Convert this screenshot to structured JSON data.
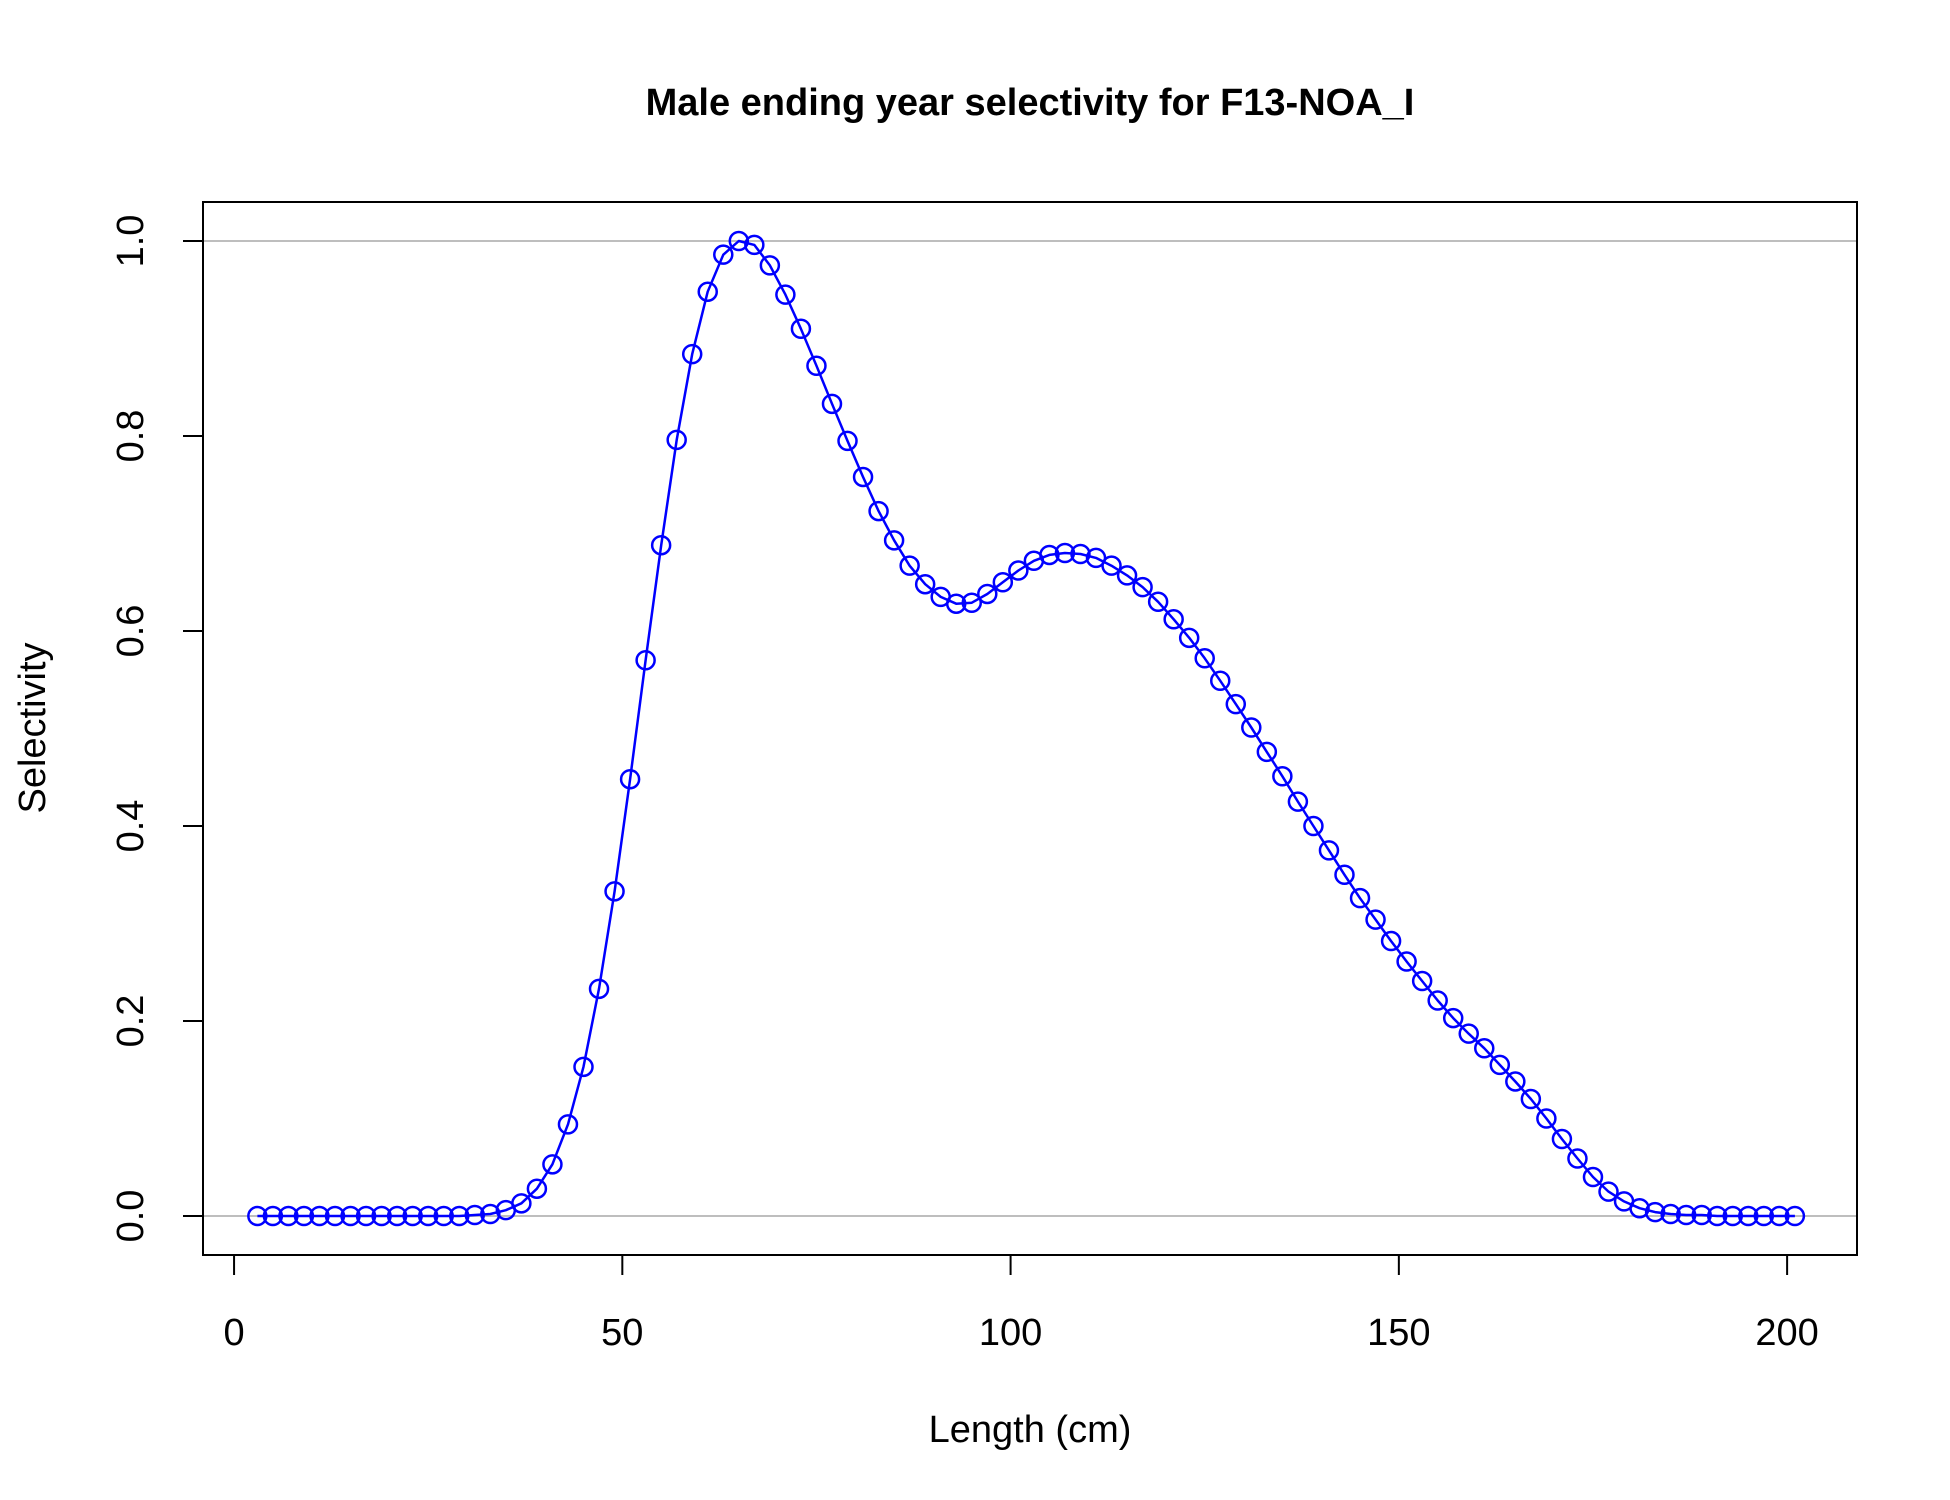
{
  "chart_data": {
    "type": "line",
    "title": "Male ending year selectivity for F13-NOA_I",
    "xlabel": "Length (cm)",
    "ylabel": "Selectivity",
    "xlim": [
      -4,
      209
    ],
    "ylim": [
      -0.04,
      1.04
    ],
    "x_ticks": [
      0,
      50,
      100,
      150,
      200
    ],
    "x_tick_labels": [
      "0",
      "50",
      "100",
      "150",
      "200"
    ],
    "y_ticks": [
      0,
      0.2,
      0.4,
      0.6,
      0.8,
      1.0
    ],
    "y_tick_labels": [
      "0.0",
      "0.2",
      "0.4",
      "0.6",
      "0.8",
      "1.0"
    ],
    "reference_lines": [
      0,
      1
    ],
    "reference_line_color": "#bebebe",
    "marker": "open-circle",
    "grid": false,
    "legend": "none",
    "series": [
      {
        "color": "#0000ff",
        "x": [
          3,
          5,
          7,
          9,
          11,
          13,
          15,
          17,
          19,
          21,
          23,
          25,
          27,
          29,
          31,
          33,
          35,
          37,
          39,
          41,
          43,
          45,
          47,
          49,
          51,
          53,
          55,
          57,
          59,
          61,
          63,
          65,
          67,
          69,
          71,
          73,
          75,
          77,
          79,
          81,
          83,
          85,
          87,
          89,
          91,
          93,
          95,
          97,
          99,
          101,
          103,
          105,
          107,
          109,
          111,
          113,
          115,
          117,
          119,
          121,
          123,
          125,
          127,
          129,
          131,
          133,
          135,
          137,
          139,
          141,
          143,
          145,
          147,
          149,
          151,
          153,
          155,
          157,
          159,
          161,
          163,
          165,
          167,
          169,
          171,
          173,
          175,
          177,
          179,
          181,
          183,
          185,
          187,
          189,
          191,
          193,
          195,
          197,
          199,
          201
        ],
        "values": [
          0,
          0,
          0,
          0,
          0,
          0,
          0,
          0,
          0,
          0,
          0,
          0,
          0,
          0,
          0.001,
          0.002,
          0.006,
          0.013,
          0.028,
          0.053,
          0.094,
          0.153,
          0.233,
          0.333,
          0.448,
          0.57,
          0.688,
          0.796,
          0.884,
          0.948,
          0.986,
          1.0,
          0.996,
          0.975,
          0.945,
          0.91,
          0.872,
          0.833,
          0.795,
          0.758,
          0.723,
          0.693,
          0.667,
          0.648,
          0.635,
          0.628,
          0.629,
          0.638,
          0.65,
          0.662,
          0.672,
          0.678,
          0.68,
          0.679,
          0.675,
          0.667,
          0.657,
          0.645,
          0.63,
          0.612,
          0.593,
          0.572,
          0.549,
          0.525,
          0.501,
          0.476,
          0.451,
          0.425,
          0.4,
          0.375,
          0.35,
          0.326,
          0.304,
          0.282,
          0.261,
          0.241,
          0.221,
          0.203,
          0.187,
          0.172,
          0.155,
          0.138,
          0.12,
          0.1,
          0.079,
          0.059,
          0.04,
          0.025,
          0.015,
          0.008,
          0.004,
          0.002,
          0.001,
          0.001,
          0,
          0,
          0,
          0,
          0,
          0
        ]
      }
    ]
  }
}
